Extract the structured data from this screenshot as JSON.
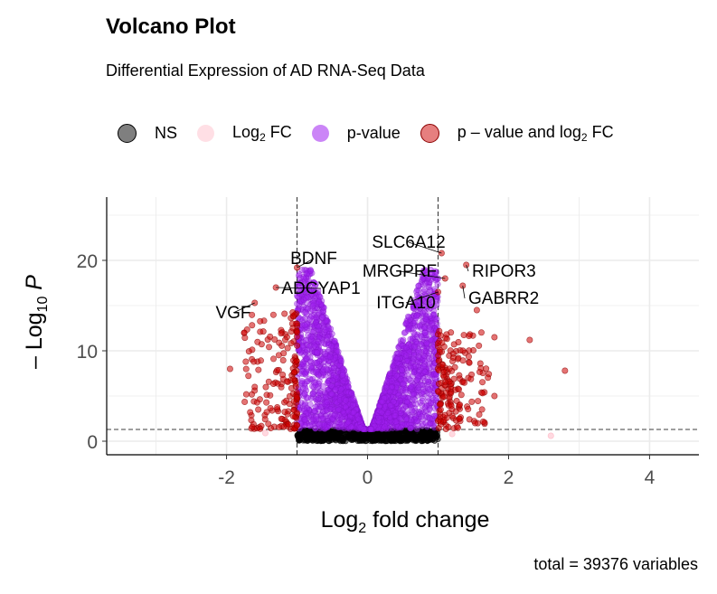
{
  "title": "Volcano Plot",
  "subtitle": "Differential Expression of AD RNA-Seq Data",
  "caption": "total = 39376 variables",
  "legend": [
    {
      "label": "NS",
      "sub": "",
      "suffix": "",
      "color": "#000000"
    },
    {
      "label": "Log",
      "sub": "2",
      "suffix": " FC",
      "color": "#ffc0cb"
    },
    {
      "label": "p-value",
      "sub": "",
      "suffix": "",
      "color": "#a020f0"
    },
    {
      "label": "p – value and log",
      "sub": "2",
      "suffix": " FC",
      "color": "#cd0000"
    }
  ],
  "chart_data": {
    "type": "scatter",
    "title": "Volcano Plot",
    "subtitle": "Differential Expression of AD RNA-Seq Data",
    "xlabel": "Log2 fold change",
    "ylabel": "–Log10 P",
    "xlim": [
      -3.7,
      4.7
    ],
    "ylim": [
      -1.5,
      27
    ],
    "xticks": [
      -2,
      0,
      2,
      4
    ],
    "yticks": [
      0,
      10,
      20
    ],
    "grid": true,
    "legend_position": "top",
    "fc_cutoff": [
      -1,
      1
    ],
    "p_cutoff_neglog10": 1.3,
    "total_variables": 39376,
    "colors": {
      "NS": "#000000",
      "Log2 FC": "#ffc0cb",
      "p-value": "#a020f0",
      "p-value and log2 FC": "#cd0000"
    },
    "labeled_genes": [
      {
        "gene": "SLC6A12",
        "x": 1.05,
        "y": 20.8
      },
      {
        "gene": "BDNF",
        "x": -1.0,
        "y": 19.2
      },
      {
        "gene": "MRGPRF",
        "x": 1.1,
        "y": 18.0
      },
      {
        "gene": "RIPOR3",
        "x": 1.4,
        "y": 19.5
      },
      {
        "gene": "ADCYAP1",
        "x": -1.3,
        "y": 17.0
      },
      {
        "gene": "ITGA10",
        "x": 1.0,
        "y": 16.5
      },
      {
        "gene": "GABRR2",
        "x": 1.35,
        "y": 17.2
      },
      {
        "gene": "VGF",
        "x": -1.6,
        "y": 15.3
      }
    ],
    "outliers": [
      {
        "x": 2.8,
        "y": 7.8,
        "group": "p-value and log2 FC"
      },
      {
        "x": 2.3,
        "y": 11.2,
        "group": "p-value and log2 FC"
      },
      {
        "x": 1.8,
        "y": 11.5,
        "group": "p-value and log2 FC"
      },
      {
        "x": 1.55,
        "y": 14.5,
        "group": "p-value and log2 FC"
      },
      {
        "x": 1.8,
        "y": 5.0,
        "group": "p-value and log2 FC"
      },
      {
        "x": 1.6,
        "y": 8.6,
        "group": "p-value and log2 FC"
      },
      {
        "x": -1.75,
        "y": 12.0,
        "group": "p-value and log2 FC"
      },
      {
        "x": -1.95,
        "y": 8.0,
        "group": "p-value and log2 FC"
      },
      {
        "x": -1.6,
        "y": 6.0,
        "group": "p-value and log2 FC"
      },
      {
        "x": -1.55,
        "y": 3.5,
        "group": "p-value and log2 FC"
      },
      {
        "x": 2.6,
        "y": 0.6,
        "group": "Log2 FC"
      },
      {
        "x": -1.45,
        "y": 0.9,
        "group": "Log2 FC"
      },
      {
        "x": 1.2,
        "y": 0.8,
        "group": "Log2 FC"
      }
    ]
  }
}
